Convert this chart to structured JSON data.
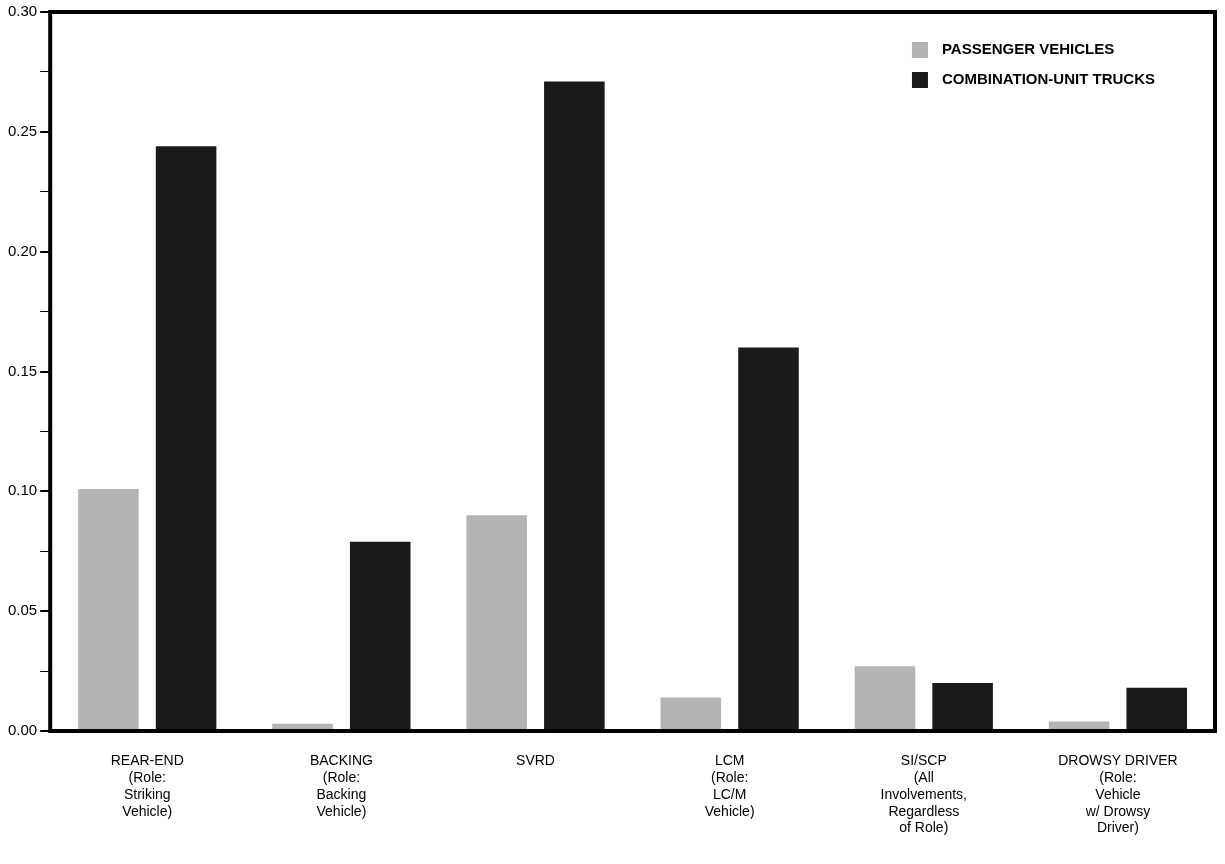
{
  "chart_data": {
    "type": "bar",
    "categories": [
      "REAR-END\n(Role:\nStriking\nVehicle)",
      "BACKING\n(Role:\nBacking\nVehicle)",
      "SVRD",
      "LCM\n(Role:\nLC/M\nVehicle)",
      "SI/SCP\n(All\nInvolvements,\nRegardless\nof Role)",
      "DROWSY DRIVER\n(Role:\nVehicle\nw/ Drowsy\nDriver)"
    ],
    "series": [
      {
        "name": "PASSENGER VEHICLES",
        "color": "#b4b4b4",
        "values": [
          0.101,
          0.003,
          0.09,
          0.014,
          0.027,
          0.004
        ]
      },
      {
        "name": "COMBINATION-UNIT TRUCKS",
        "color": "#1a1a1a",
        "values": [
          0.244,
          0.079,
          0.271,
          0.16,
          0.02,
          0.018
        ]
      }
    ],
    "ylim": [
      0,
      0.3
    ],
    "yticks": [
      {
        "value": 0,
        "label": "0.00"
      },
      {
        "value": 0.025,
        "label": null
      },
      {
        "value": 0.05,
        "label": "0.05"
      },
      {
        "value": 0.075,
        "label": null
      },
      {
        "value": 0.1,
        "label": "0.10"
      },
      {
        "value": 0.125,
        "label": null
      },
      {
        "value": 0.15,
        "label": "0.15"
      },
      {
        "value": 0.175,
        "label": null
      },
      {
        "value": 0.2,
        "label": "0.20"
      },
      {
        "value": 0.225,
        "label": null
      },
      {
        "value": 0.25,
        "label": "0.25"
      },
      {
        "value": 0.275,
        "label": null
      },
      {
        "value": 0.3,
        "label": "0.30"
      }
    ],
    "grid": false,
    "legend": "top right"
  }
}
